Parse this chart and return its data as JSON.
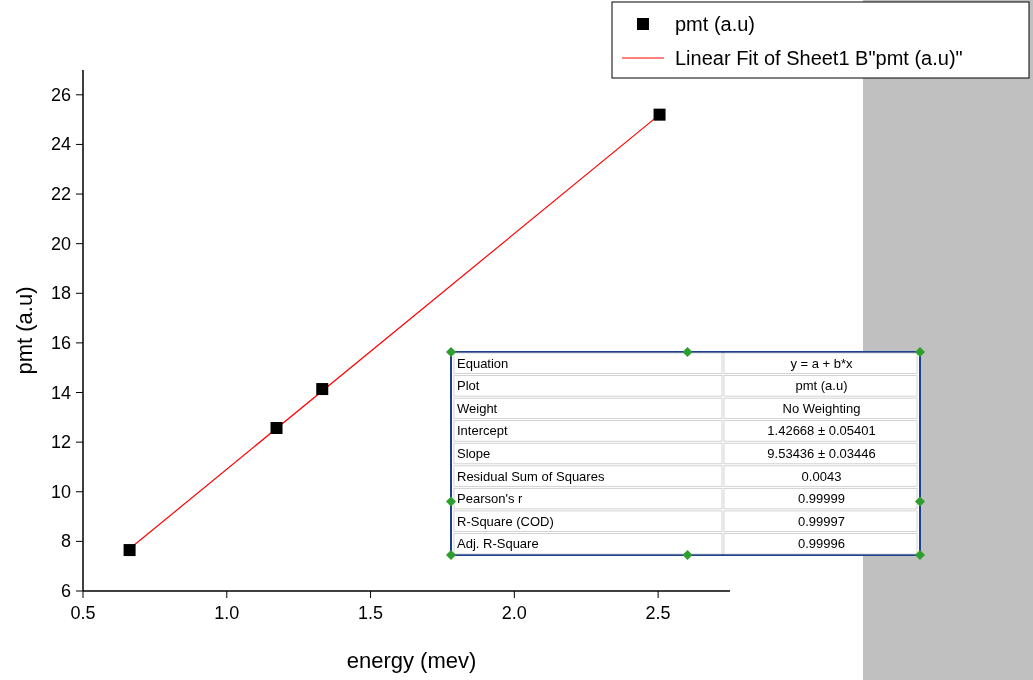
{
  "chart_data": {
    "type": "scatter",
    "xlabel": "energy (mev)",
    "ylabel": "pmt (a.u)",
    "x": [
      0.662,
      1.173,
      1.332,
      2.505
    ],
    "series": [
      {
        "name": "pmt (a.u)",
        "color": "#000000",
        "marker": "square",
        "values": [
          7.65,
          12.57,
          14.14,
          25.2
        ]
      },
      {
        "name": "Linear Fit of Sheet1 B\"pmt (a.u)\"",
        "type": "line",
        "color": "#ff0000",
        "x": [
          0.662,
          2.505
        ],
        "values": [
          7.7,
          25.2
        ],
        "line_style": "solid"
      }
    ],
    "xlim": [
      0.5,
      2.75
    ],
    "xticks": [
      {
        "value": 0.5,
        "label": "0.5"
      },
      {
        "value": 1,
        "label": "1.0"
      },
      {
        "value": 1.5,
        "label": "1.5"
      },
      {
        "value": 2,
        "label": "2.0"
      },
      {
        "value": 2.5,
        "label": "2.5"
      }
    ],
    "ylim": [
      6,
      27
    ],
    "yticks": [
      6,
      8,
      10,
      12,
      14,
      16,
      18,
      20,
      22,
      24,
      26
    ],
    "grid": false,
    "legend": "top right",
    "annotations": [
      "Equation",
      "y = a + b*x",
      "Plot",
      "pmt (a.u)",
      "Weight",
      "No Weighting",
      "Intercept",
      "1.42668 ± 0.05401",
      "Slope",
      "9.53436 ± 0.03446",
      "Residual Sum of Squares",
      "0.0043",
      "Pearson's r",
      "0.99999",
      "R-Square (COD)",
      "0.99997",
      "Adj. R-Square",
      "0.99996"
    ]
  }
}
